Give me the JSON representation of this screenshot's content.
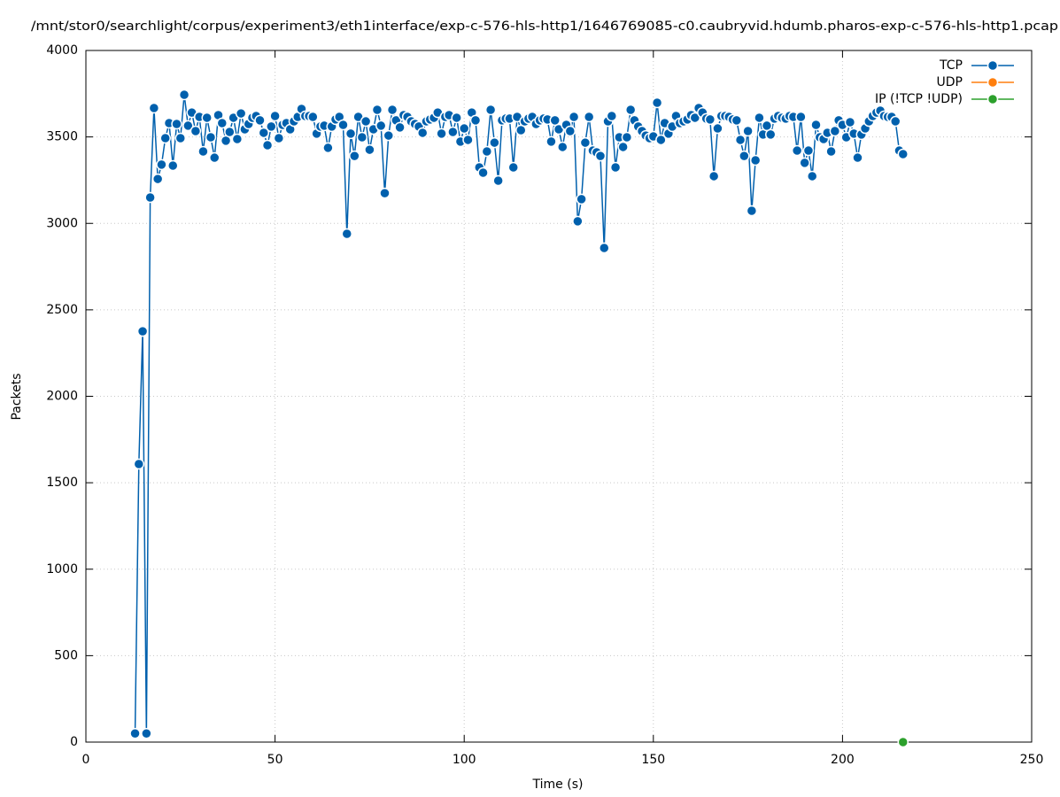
{
  "chart_data": {
    "type": "line",
    "title": "/mnt/stor0/searchlight/corpus/experiment3/eth1interface/exp-c-576-hls-http1/1646769085-c0.caubryvid.hdumb.pharos-exp-c-576-hls-http1.pcap",
    "xlabel": "Time (s)",
    "ylabel": "Packets",
    "xlim": [
      0,
      250
    ],
    "xticks": [
      0,
      50,
      100,
      150,
      200,
      250
    ],
    "ylim": [
      0,
      4000
    ],
    "yticks": [
      0,
      500,
      1000,
      1500,
      2000,
      2500,
      3000,
      3500,
      4000
    ],
    "grid": true,
    "legend": "top-right",
    "series": [
      {
        "name": "TCP",
        "color": "#0060ad",
        "x": [
          13,
          14,
          15,
          16,
          17,
          18,
          19,
          20,
          21,
          22,
          23,
          24,
          25,
          26,
          27,
          28,
          29,
          30,
          31,
          32,
          33,
          34,
          35,
          36,
          37,
          38,
          39,
          40,
          41,
          42,
          43,
          44,
          45,
          46,
          47,
          48,
          49,
          50,
          51,
          52,
          53,
          54,
          55,
          56,
          57,
          58,
          59,
          60,
          61,
          62,
          63,
          64,
          65,
          66,
          67,
          68,
          69,
          70,
          71,
          72,
          73,
          74,
          75,
          76,
          77,
          78,
          79,
          80,
          81,
          82,
          83,
          84,
          85,
          86,
          87,
          88,
          89,
          90,
          91,
          92,
          93,
          94,
          95,
          96,
          97,
          98,
          99,
          100,
          101,
          102,
          103,
          104,
          105,
          106,
          107,
          108,
          109,
          110,
          111,
          112,
          113,
          114,
          115,
          116,
          117,
          118,
          119,
          120,
          121,
          122,
          123,
          124,
          125,
          126,
          127,
          128,
          129,
          130,
          131,
          132,
          133,
          134,
          135,
          136,
          137,
          138,
          139,
          140,
          141,
          142,
          143,
          144,
          145,
          146,
          147,
          148,
          149,
          150,
          151,
          152,
          153,
          154,
          155,
          156,
          157,
          158,
          159,
          160,
          161,
          162,
          163,
          164,
          165,
          166,
          167,
          168,
          169,
          170,
          171,
          172,
          173,
          174,
          175,
          176,
          177,
          178,
          179,
          180,
          181,
          182,
          183,
          184,
          185,
          186,
          187,
          188,
          189,
          190,
          191,
          192,
          193,
          194,
          195,
          196,
          197,
          198,
          199,
          200,
          201,
          202,
          203,
          204,
          205,
          206,
          207,
          208,
          209,
          210,
          211,
          212,
          213,
          214,
          215,
          216
        ],
        "values": [
          50,
          1608,
          2376,
          50,
          3150,
          3667,
          3257,
          3340,
          3493,
          3580,
          3334,
          3575,
          3493,
          3744,
          3565,
          3641,
          3534,
          3616,
          3416,
          3611,
          3498,
          3380,
          3626,
          3580,
          3478,
          3529,
          3611,
          3488,
          3636,
          3544,
          3575,
          3611,
          3621,
          3596,
          3524,
          3452,
          3560,
          3621,
          3493,
          3570,
          3580,
          3544,
          3590,
          3616,
          3662,
          3621,
          3621,
          3616,
          3519,
          3560,
          3565,
          3437,
          3560,
          3601,
          3616,
          3570,
          2940,
          3519,
          3390,
          3616,
          3498,
          3590,
          3426,
          3544,
          3657,
          3565,
          3175,
          3508,
          3657,
          3596,
          3555,
          3626,
          3616,
          3590,
          3575,
          3560,
          3524,
          3590,
          3601,
          3611,
          3641,
          3519,
          3616,
          3626,
          3529,
          3611,
          3473,
          3549,
          3483,
          3641,
          3596,
          3324,
          3293,
          3416,
          3657,
          3467,
          3247,
          3596,
          3606,
          3606,
          3324,
          3616,
          3539,
          3590,
          3606,
          3616,
          3575,
          3596,
          3606,
          3601,
          3473,
          3596,
          3544,
          3442,
          3570,
          3534,
          3616,
          3012,
          3140,
          3467,
          3616,
          3421,
          3411,
          3390,
          2858,
          3590,
          3621,
          3324,
          3498,
          3442,
          3498,
          3657,
          3596,
          3560,
          3534,
          3508,
          3493,
          3503,
          3698,
          3483,
          3580,
          3519,
          3560,
          3621,
          3580,
          3590,
          3601,
          3626,
          3611,
          3667,
          3641,
          3606,
          3601,
          3273,
          3549,
          3621,
          3621,
          3616,
          3601,
          3596,
          3483,
          3390,
          3534,
          3073,
          3365,
          3611,
          3514,
          3565,
          3514,
          3606,
          3621,
          3611,
          3606,
          3621,
          3616,
          3421,
          3616,
          3350,
          3421,
          3273,
          3570,
          3498,
          3488,
          3524,
          3416,
          3534,
          3596,
          3570,
          3498,
          3585,
          3519,
          3380,
          3514,
          3549,
          3590,
          3621,
          3641,
          3652,
          3621,
          3616,
          3616,
          3590,
          3421,
          3401
        ]
      },
      {
        "name": "UDP",
        "color": "#ff7f0e",
        "x": [],
        "values": []
      },
      {
        "name": "IP (!TCP  !UDP)",
        "color": "#2ca02c",
        "x": [
          216
        ],
        "values": [
          0
        ]
      }
    ]
  }
}
